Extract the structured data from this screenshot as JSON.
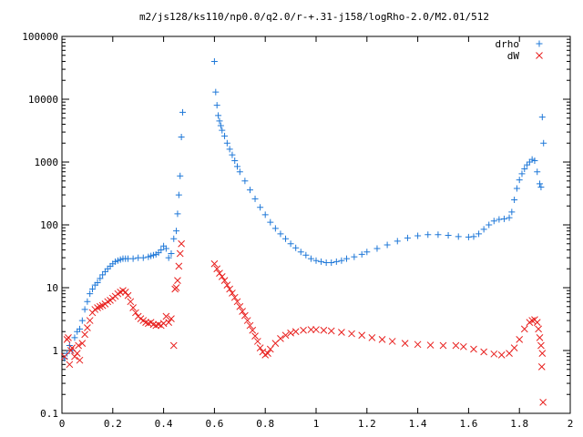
{
  "chart_data": {
    "type": "scatter",
    "title": "m2/js128/ks110/np0.0/q2.0/r-+.31-j158/logRho-2.0/M2.01/512",
    "xlabel": "",
    "ylabel": "",
    "xlim": [
      0,
      2
    ],
    "ylim": [
      0.1,
      100000
    ],
    "y_scale": "log",
    "grid": false,
    "legend": "top-right",
    "x_ticks": [
      "0",
      "0.2",
      "0.4",
      "0.6",
      "0.8",
      "1",
      "1.2",
      "1.4",
      "1.6",
      "1.8",
      "2"
    ],
    "y_ticks": [
      "0.1",
      "1",
      "10",
      "100",
      "1000",
      "10000",
      "100000"
    ],
    "series": [
      {
        "name": "drho",
        "marker": "plus",
        "color": "#1f78d8",
        "points": [
          [
            0.01,
            0.75
          ],
          [
            0.02,
            0.9
          ],
          [
            0.03,
            1.2
          ],
          [
            0.04,
            1.0
          ],
          [
            0.05,
            1.6
          ],
          [
            0.06,
            2.0
          ],
          [
            0.07,
            2.2
          ],
          [
            0.08,
            3.0
          ],
          [
            0.09,
            4.5
          ],
          [
            0.1,
            6.0
          ],
          [
            0.11,
            8.0
          ],
          [
            0.12,
            9.5
          ],
          [
            0.13,
            11
          ],
          [
            0.14,
            12
          ],
          [
            0.15,
            14
          ],
          [
            0.16,
            16
          ],
          [
            0.17,
            18
          ],
          [
            0.18,
            20
          ],
          [
            0.19,
            22
          ],
          [
            0.2,
            24
          ],
          [
            0.21,
            26
          ],
          [
            0.22,
            27
          ],
          [
            0.23,
            28
          ],
          [
            0.24,
            29
          ],
          [
            0.25,
            29
          ],
          [
            0.26,
            29
          ],
          [
            0.28,
            29
          ],
          [
            0.3,
            30
          ],
          [
            0.32,
            30
          ],
          [
            0.34,
            31
          ],
          [
            0.35,
            32
          ],
          [
            0.36,
            33
          ],
          [
            0.37,
            34
          ],
          [
            0.38,
            36
          ],
          [
            0.39,
            40
          ],
          [
            0.4,
            46
          ],
          [
            0.41,
            42
          ],
          [
            0.42,
            30
          ],
          [
            0.43,
            35
          ],
          [
            0.44,
            60
          ],
          [
            0.45,
            80
          ],
          [
            0.455,
            150
          ],
          [
            0.46,
            300
          ],
          [
            0.465,
            600
          ],
          [
            0.47,
            2500
          ],
          [
            0.475,
            6200
          ],
          [
            0.6,
            40000
          ],
          [
            0.605,
            13000
          ],
          [
            0.61,
            8000
          ],
          [
            0.615,
            5500
          ],
          [
            0.62,
            4500
          ],
          [
            0.625,
            3800
          ],
          [
            0.63,
            3200
          ],
          [
            0.64,
            2600
          ],
          [
            0.65,
            2000
          ],
          [
            0.66,
            1600
          ],
          [
            0.67,
            1300
          ],
          [
            0.68,
            1050
          ],
          [
            0.69,
            850
          ],
          [
            0.7,
            700
          ],
          [
            0.72,
            500
          ],
          [
            0.74,
            360
          ],
          [
            0.76,
            260
          ],
          [
            0.78,
            190
          ],
          [
            0.8,
            145
          ],
          [
            0.82,
            110
          ],
          [
            0.84,
            88
          ],
          [
            0.86,
            72
          ],
          [
            0.88,
            60
          ],
          [
            0.9,
            50
          ],
          [
            0.92,
            43
          ],
          [
            0.94,
            37
          ],
          [
            0.96,
            33
          ],
          [
            0.98,
            29
          ],
          [
            1.0,
            27
          ],
          [
            1.02,
            26
          ],
          [
            1.04,
            25
          ],
          [
            1.06,
            25
          ],
          [
            1.08,
            26
          ],
          [
            1.1,
            27
          ],
          [
            1.12,
            29
          ],
          [
            1.15,
            31
          ],
          [
            1.18,
            34
          ],
          [
            1.2,
            37
          ],
          [
            1.24,
            42
          ],
          [
            1.28,
            48
          ],
          [
            1.32,
            55
          ],
          [
            1.36,
            62
          ],
          [
            1.4,
            67
          ],
          [
            1.44,
            70
          ],
          [
            1.48,
            70
          ],
          [
            1.52,
            68
          ],
          [
            1.56,
            65
          ],
          [
            1.6,
            64
          ],
          [
            1.62,
            65
          ],
          [
            1.64,
            72
          ],
          [
            1.66,
            85
          ],
          [
            1.68,
            100
          ],
          [
            1.7,
            115
          ],
          [
            1.72,
            122
          ],
          [
            1.74,
            125
          ],
          [
            1.76,
            130
          ],
          [
            1.77,
            160
          ],
          [
            1.78,
            250
          ],
          [
            1.79,
            380
          ],
          [
            1.8,
            520
          ],
          [
            1.81,
            650
          ],
          [
            1.82,
            780
          ],
          [
            1.83,
            900
          ],
          [
            1.84,
            1000
          ],
          [
            1.85,
            1100
          ],
          [
            1.86,
            1050
          ],
          [
            1.87,
            700
          ],
          [
            1.88,
            450
          ],
          [
            1.885,
            400
          ],
          [
            1.89,
            5200
          ],
          [
            1.895,
            2000
          ]
        ]
      },
      {
        "name": "dW",
        "marker": "cross",
        "color": "#e8201e",
        "points": [
          [
            0.01,
            0.8
          ],
          [
            0.02,
            1.5
          ],
          [
            0.025,
            1.6
          ],
          [
            0.03,
            0.6
          ],
          [
            0.035,
            1.0
          ],
          [
            0.04,
            1.1
          ],
          [
            0.05,
            0.8
          ],
          [
            0.06,
            0.9
          ],
          [
            0.065,
            1.2
          ],
          [
            0.07,
            0.7
          ],
          [
            0.08,
            1.3
          ],
          [
            0.09,
            1.8
          ],
          [
            0.1,
            2.3
          ],
          [
            0.11,
            3.0
          ],
          [
            0.12,
            4.0
          ],
          [
            0.13,
            4.5
          ],
          [
            0.14,
            4.8
          ],
          [
            0.15,
            5.0
          ],
          [
            0.16,
            5.2
          ],
          [
            0.17,
            5.5
          ],
          [
            0.18,
            6.0
          ],
          [
            0.19,
            6.3
          ],
          [
            0.2,
            6.8
          ],
          [
            0.21,
            7.3
          ],
          [
            0.22,
            8.0
          ],
          [
            0.23,
            8.5
          ],
          [
            0.24,
            9.0
          ],
          [
            0.25,
            8.5
          ],
          [
            0.26,
            7.5
          ],
          [
            0.27,
            6.0
          ],
          [
            0.28,
            4.8
          ],
          [
            0.29,
            4.0
          ],
          [
            0.3,
            3.5
          ],
          [
            0.31,
            3.2
          ],
          [
            0.32,
            3.0
          ],
          [
            0.33,
            2.8
          ],
          [
            0.34,
            2.7
          ],
          [
            0.35,
            2.8
          ],
          [
            0.36,
            2.6
          ],
          [
            0.37,
            2.5
          ],
          [
            0.38,
            2.6
          ],
          [
            0.39,
            2.5
          ],
          [
            0.4,
            2.7
          ],
          [
            0.41,
            3.5
          ],
          [
            0.42,
            2.8
          ],
          [
            0.43,
            3.2
          ],
          [
            0.44,
            1.2
          ],
          [
            0.445,
            9.5
          ],
          [
            0.45,
            10
          ],
          [
            0.455,
            13
          ],
          [
            0.46,
            22
          ],
          [
            0.465,
            35
          ],
          [
            0.47,
            50
          ],
          [
            0.6,
            24
          ],
          [
            0.61,
            20
          ],
          [
            0.62,
            17
          ],
          [
            0.63,
            15
          ],
          [
            0.64,
            13
          ],
          [
            0.65,
            11
          ],
          [
            0.66,
            9.5
          ],
          [
            0.67,
            8.2
          ],
          [
            0.68,
            7.0
          ],
          [
            0.69,
            6.0
          ],
          [
            0.7,
            5.0
          ],
          [
            0.71,
            4.2
          ],
          [
            0.72,
            3.6
          ],
          [
            0.73,
            3.0
          ],
          [
            0.74,
            2.5
          ],
          [
            0.75,
            2.1
          ],
          [
            0.76,
            1.7
          ],
          [
            0.77,
            1.4
          ],
          [
            0.78,
            1.1
          ],
          [
            0.79,
            0.95
          ],
          [
            0.8,
            0.85
          ],
          [
            0.81,
            0.9
          ],
          [
            0.82,
            1.05
          ],
          [
            0.84,
            1.3
          ],
          [
            0.86,
            1.55
          ],
          [
            0.88,
            1.75
          ],
          [
            0.9,
            1.9
          ],
          [
            0.92,
            2.0
          ],
          [
            0.95,
            2.1
          ],
          [
            0.98,
            2.15
          ],
          [
            1.0,
            2.15
          ],
          [
            1.03,
            2.1
          ],
          [
            1.06,
            2.05
          ],
          [
            1.1,
            1.95
          ],
          [
            1.14,
            1.85
          ],
          [
            1.18,
            1.75
          ],
          [
            1.22,
            1.6
          ],
          [
            1.26,
            1.5
          ],
          [
            1.3,
            1.4
          ],
          [
            1.35,
            1.3
          ],
          [
            1.4,
            1.25
          ],
          [
            1.45,
            1.22
          ],
          [
            1.5,
            1.2
          ],
          [
            1.55,
            1.2
          ],
          [
            1.58,
            1.15
          ],
          [
            1.62,
            1.05
          ],
          [
            1.66,
            0.95
          ],
          [
            1.7,
            0.88
          ],
          [
            1.73,
            0.85
          ],
          [
            1.76,
            0.9
          ],
          [
            1.78,
            1.1
          ],
          [
            1.8,
            1.5
          ],
          [
            1.82,
            2.2
          ],
          [
            1.84,
            2.8
          ],
          [
            1.85,
            3.0
          ],
          [
            1.86,
            3.1
          ],
          [
            1.87,
            2.8
          ],
          [
            1.875,
            2.2
          ],
          [
            1.88,
            1.6
          ],
          [
            1.885,
            1.2
          ],
          [
            1.888,
            0.55
          ],
          [
            1.89,
            0.9
          ],
          [
            1.893,
            0.15
          ]
        ]
      }
    ]
  }
}
